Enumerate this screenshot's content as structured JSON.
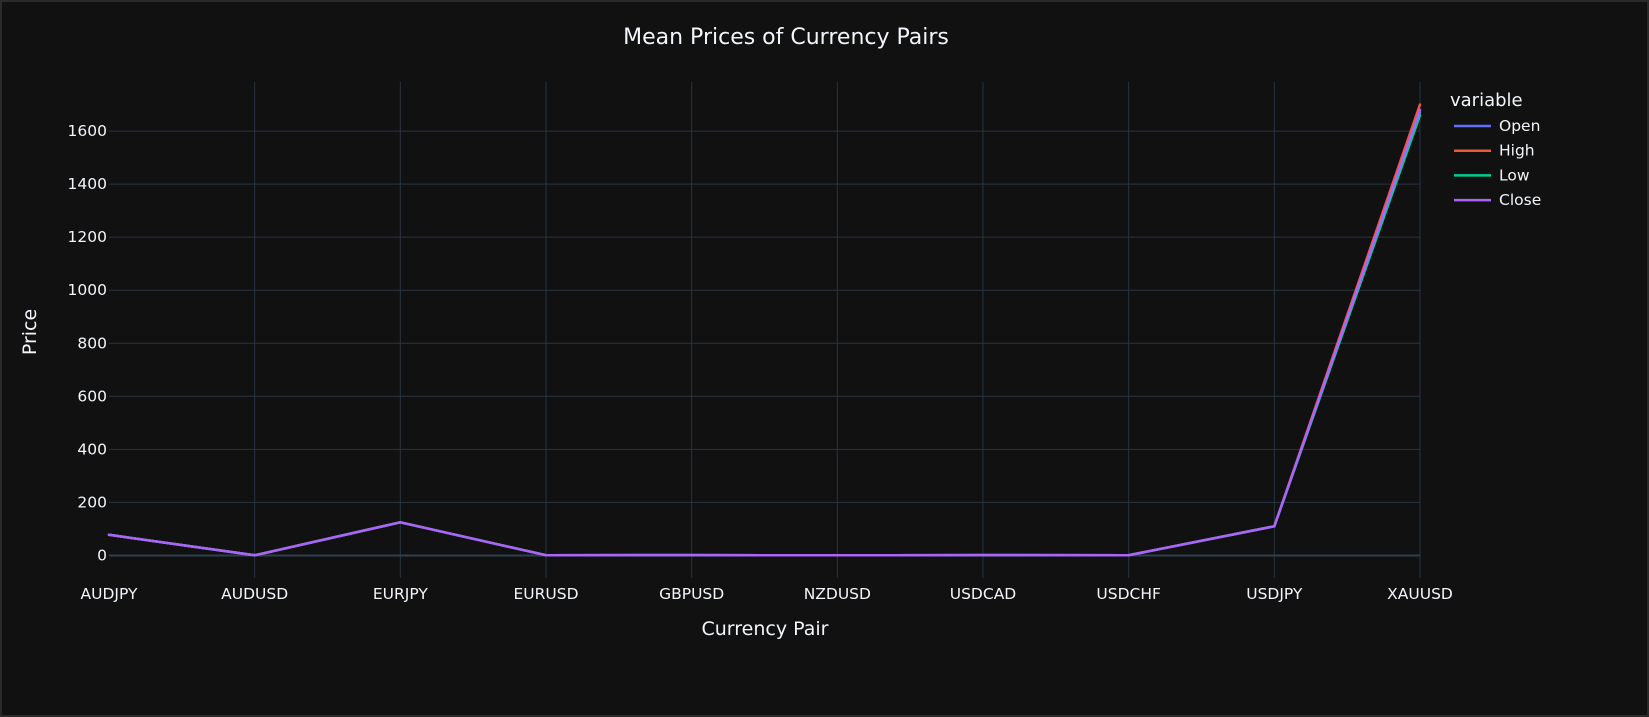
{
  "chart_data": {
    "type": "line",
    "title": "Mean Prices of Currency Pairs",
    "xlabel": "Currency Pair",
    "ylabel": "Price",
    "categories": [
      "AUDJPY",
      "AUDUSD",
      "EURJPY",
      "EURUSD",
      "GBPUSD",
      "NZDUSD",
      "USDCAD",
      "USDCHF",
      "USDJPY",
      "XAUUSD"
    ],
    "yticks": [
      0,
      200,
      400,
      600,
      800,
      1000,
      1200,
      1400,
      1600
    ],
    "ylim": [
      -85,
      1785
    ],
    "grid": true,
    "legend": {
      "title": "variable",
      "placement": "top-right"
    },
    "series": [
      {
        "name": "Open",
        "color": "#636efa",
        "values": [
          78,
          0.7,
          125,
          1.1,
          1.3,
          0.7,
          1.3,
          0.9,
          110,
          1670
        ]
      },
      {
        "name": "High",
        "color": "#ef553b",
        "values": [
          78,
          0.7,
          125,
          1.1,
          1.3,
          0.7,
          1.3,
          0.9,
          110,
          1700
        ]
      },
      {
        "name": "Low",
        "color": "#00cc96",
        "values": [
          78,
          0.7,
          125,
          1.1,
          1.3,
          0.7,
          1.3,
          0.9,
          110,
          1660
        ]
      },
      {
        "name": "Close",
        "color": "#ab63fa",
        "values": [
          78,
          0.7,
          125,
          1.1,
          1.3,
          0.7,
          1.3,
          0.9,
          110,
          1680
        ]
      }
    ]
  }
}
